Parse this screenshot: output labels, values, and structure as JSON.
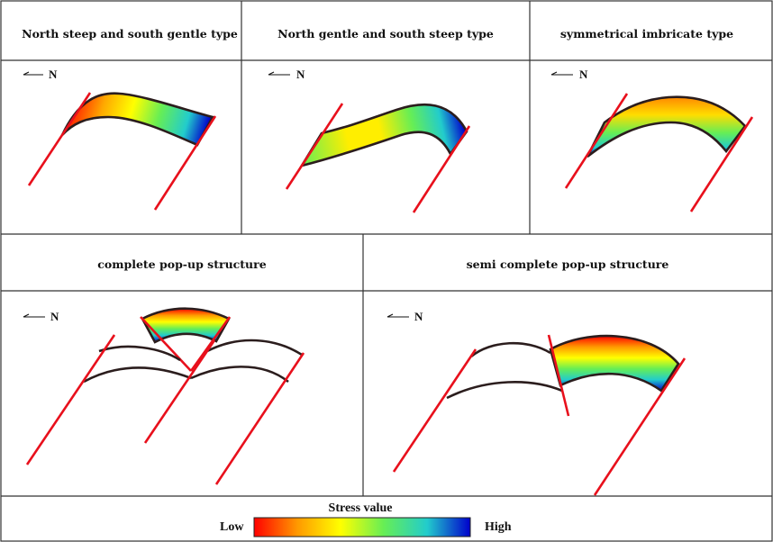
{
  "panels": {
    "p1": {
      "title": "North steep and south gentle type",
      "north": "N"
    },
    "p2": {
      "title": "North gentle and south steep type",
      "north": "N"
    },
    "p3": {
      "title": "symmetrical imbricate type",
      "north": "N"
    },
    "p4": {
      "title": "complete pop-up structure",
      "north": "N"
    },
    "p5": {
      "title": "semi complete pop-up structure",
      "north": "N"
    }
  },
  "legend": {
    "title": "Stress value",
    "low_label": "Low",
    "high_label": "High",
    "colors": {
      "low": "#ff0000",
      "orange": "#ff9900",
      "yellow": "#ffff00",
      "green": "#66ee55",
      "cyan": "#22cccc",
      "high": "#0000cc"
    }
  },
  "colors": {
    "fault_line": "#e8101c",
    "layer_outline": "#2b1d1d"
  }
}
